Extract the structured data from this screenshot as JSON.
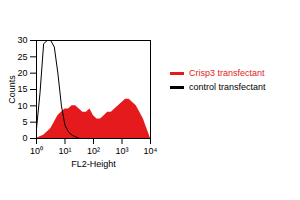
{
  "chart_data": {
    "type": "line",
    "x_label": "FL2-Height",
    "y_label": "Counts",
    "x": [
      1,
      1.33,
      1.78,
      2.37,
      3.16,
      4.22,
      5.62,
      7.5,
      10,
      13.3,
      17.8,
      23.7,
      31.6,
      42.2,
      56.2,
      75,
      100,
      133,
      178,
      237,
      316,
      422,
      562,
      750,
      1000,
      1334,
      1778,
      2371,
      3162,
      4217,
      5623,
      7499,
      10000
    ],
    "series": [
      {
        "name": "Crisp3 transfectant",
        "color": "#e41a1c",
        "type": "area",
        "values": [
          0,
          0.5,
          1,
          2,
          3,
          5,
          7,
          8,
          9,
          9,
          10,
          10,
          9,
          8,
          8,
          9,
          7,
          6,
          6,
          7,
          8,
          8,
          9,
          10,
          11,
          12,
          12,
          11,
          10,
          8,
          6,
          3,
          0
        ]
      },
      {
        "name": "control transfectant",
        "color": "#000000",
        "type": "line",
        "values": [
          3,
          14,
          29,
          30,
          30,
          28,
          20,
          10,
          4,
          2,
          1,
          0.5,
          0,
          0,
          0,
          0,
          0,
          0,
          0,
          0,
          0,
          0,
          0,
          0,
          0,
          0,
          0,
          0,
          0,
          0,
          0,
          0,
          0
        ]
      }
    ],
    "log": "x",
    "xlim": [
      1,
      10000
    ],
    "xticks": [
      {
        "value": 1,
        "label": "10⁰"
      },
      {
        "value": 10,
        "label": "10¹"
      },
      {
        "value": 100,
        "label": "10²"
      },
      {
        "value": 1000,
        "label": "10³"
      },
      {
        "value": 10000,
        "label": "10⁴"
      }
    ],
    "ylim": [
      0,
      30
    ],
    "yticks": [
      0,
      5,
      10,
      15,
      20,
      25,
      30
    ],
    "legend": "right"
  }
}
